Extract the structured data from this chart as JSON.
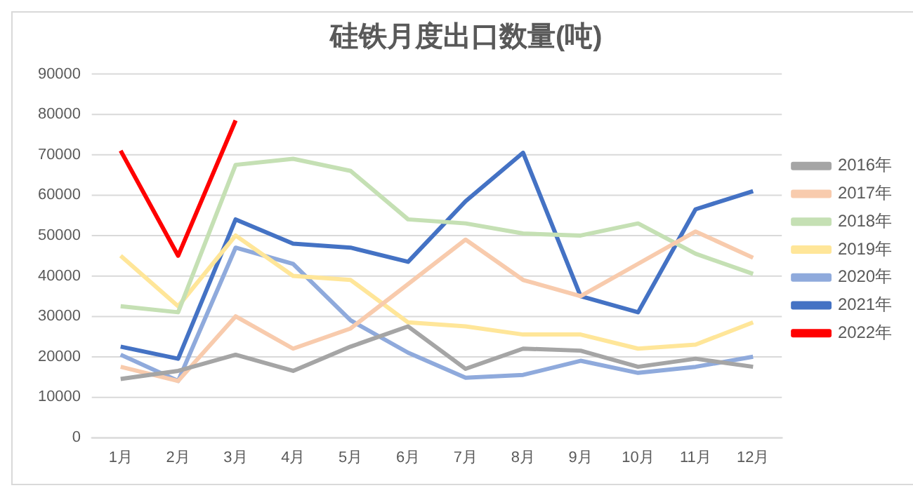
{
  "chart_data": {
    "type": "line",
    "title": "硅铁月度出口数量(吨)",
    "categories": [
      "1月",
      "2月",
      "3月",
      "4月",
      "5月",
      "6月",
      "7月",
      "8月",
      "9月",
      "10月",
      "11月",
      "12月"
    ],
    "series": [
      {
        "name": "2016年",
        "color": "#a5a5a5",
        "values": [
          14500,
          16500,
          20500,
          16500,
          22500,
          27500,
          17000,
          22000,
          21500,
          17500,
          19500,
          17500
        ]
      },
      {
        "name": "2017年",
        "color": "#f8cbad",
        "values": [
          17500,
          14000,
          30000,
          22000,
          27000,
          38000,
          49000,
          39000,
          35000,
          43000,
          51000,
          44500
        ]
      },
      {
        "name": "2018年",
        "color": "#c5e0b4",
        "values": [
          32500,
          31000,
          67500,
          69000,
          66000,
          54000,
          53000,
          50500,
          50000,
          53000,
          45500,
          40500
        ]
      },
      {
        "name": "2019年",
        "color": "#ffe699",
        "values": [
          45000,
          32500,
          50000,
          40000,
          39000,
          28500,
          27500,
          25500,
          25500,
          22000,
          23000,
          28500
        ]
      },
      {
        "name": "2020年",
        "color": "#8faadc",
        "values": [
          20500,
          14000,
          47000,
          43000,
          29000,
          21000,
          14800,
          15500,
          19000,
          16000,
          17500,
          20000
        ]
      },
      {
        "name": "2021年",
        "color": "#4472c4",
        "values": [
          22500,
          19500,
          54000,
          48000,
          47000,
          43500,
          58500,
          70500,
          35000,
          31000,
          56500,
          61000
        ]
      },
      {
        "name": "2022年",
        "color": "#ff0000",
        "values": [
          71000,
          45000,
          78500,
          null,
          null,
          null,
          null,
          null,
          null,
          null,
          null,
          null
        ]
      }
    ],
    "ylim": [
      0,
      90000
    ],
    "yticks": [
      0,
      10000,
      20000,
      30000,
      40000,
      50000,
      60000,
      70000,
      80000,
      90000
    ],
    "grid": "y",
    "legend": "right",
    "marker": "none",
    "line_style": "solid"
  }
}
